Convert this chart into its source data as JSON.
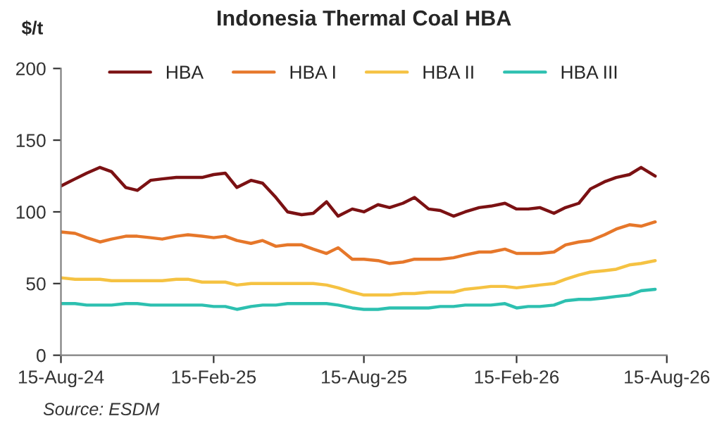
{
  "chart_data": {
    "type": "line",
    "title": "Indonesia Thermal Coal HBA",
    "ylabel": "$/t",
    "x": [
      "2024-08-15",
      "2024-09-01",
      "2024-09-15",
      "2024-10-01",
      "2024-10-15",
      "2024-11-01",
      "2024-11-15",
      "2024-12-01",
      "2024-12-15",
      "2025-01-01",
      "2025-01-15",
      "2025-02-01",
      "2025-02-15",
      "2025-03-01",
      "2025-03-15",
      "2025-04-01",
      "2025-04-15",
      "2025-05-01",
      "2025-05-15",
      "2025-06-01",
      "2025-06-15",
      "2025-07-01",
      "2025-07-15",
      "2025-08-01",
      "2025-08-15",
      "2025-09-01",
      "2025-09-15",
      "2025-10-01",
      "2025-10-15",
      "2025-11-01",
      "2025-11-15",
      "2025-12-01",
      "2025-12-15",
      "2026-01-01",
      "2026-01-15",
      "2026-02-01",
      "2026-02-15",
      "2026-03-01",
      "2026-03-15",
      "2026-04-01",
      "2026-04-15",
      "2026-05-01",
      "2026-05-15",
      "2026-06-01",
      "2026-06-15",
      "2026-07-01",
      "2026-07-15",
      "2026-08-01"
    ],
    "series": [
      {
        "name": "HBA",
        "color": "#7b1113",
        "values": [
          118,
          123,
          127,
          131,
          128,
          117,
          115,
          122,
          123,
          124,
          124,
          124,
          126,
          127,
          117,
          122,
          120,
          110,
          100,
          98,
          99,
          107,
          97,
          102,
          100,
          105,
          103,
          106,
          110,
          102,
          101,
          97,
          100,
          103,
          104,
          106,
          102,
          102,
          103,
          99,
          103,
          106,
          116,
          121,
          124,
          126,
          131,
          125
        ]
      },
      {
        "name": "HBA I",
        "color": "#e6772a",
        "values": [
          86,
          85,
          82,
          79,
          81,
          83,
          83,
          82,
          81,
          83,
          84,
          83,
          82,
          83,
          80,
          78,
          80,
          76,
          77,
          77,
          74,
          71,
          75,
          67,
          67,
          66,
          64,
          65,
          67,
          67,
          67,
          68,
          70,
          72,
          72,
          74,
          71,
          71,
          71,
          72,
          77,
          79,
          80,
          84,
          88,
          91,
          90,
          93
        ]
      },
      {
        "name": "HBA II",
        "color": "#f5c242",
        "values": [
          54,
          53,
          53,
          53,
          52,
          52,
          52,
          52,
          52,
          53,
          53,
          51,
          51,
          51,
          49,
          50,
          50,
          50,
          50,
          50,
          50,
          49,
          47,
          44,
          42,
          42,
          42,
          43,
          43,
          44,
          44,
          44,
          46,
          47,
          48,
          48,
          47,
          48,
          49,
          50,
          53,
          56,
          58,
          59,
          60,
          63,
          64,
          66
        ]
      },
      {
        "name": "HBA III",
        "color": "#2dc0b0",
        "values": [
          36,
          36,
          35,
          35,
          35,
          36,
          36,
          35,
          35,
          35,
          35,
          35,
          34,
          34,
          32,
          34,
          35,
          35,
          36,
          36,
          36,
          36,
          35,
          33,
          32,
          32,
          33,
          33,
          33,
          33,
          34,
          34,
          35,
          35,
          35,
          36,
          33,
          34,
          34,
          35,
          38,
          39,
          39,
          40,
          41,
          42,
          45,
          46
        ]
      }
    ],
    "xlim": [
      "2024-08-15",
      "2026-08-15"
    ],
    "xticks": [
      {
        "value": "2024-08-15",
        "label": "15-Aug-24"
      },
      {
        "value": "2025-02-15",
        "label": "15-Feb-25"
      },
      {
        "value": "2025-08-15",
        "label": "15-Aug-25"
      },
      {
        "value": "2026-02-15",
        "label": "15-Feb-26"
      },
      {
        "value": "2026-08-15",
        "label": "15-Aug-26"
      }
    ],
    "ylim": [
      0,
      200
    ],
    "yticks": [
      0,
      50,
      100,
      150,
      200
    ],
    "grid": false,
    "legend": "top",
    "marker": "none",
    "line_style": "solid",
    "annotations": [
      "Source: ESDM"
    ]
  }
}
